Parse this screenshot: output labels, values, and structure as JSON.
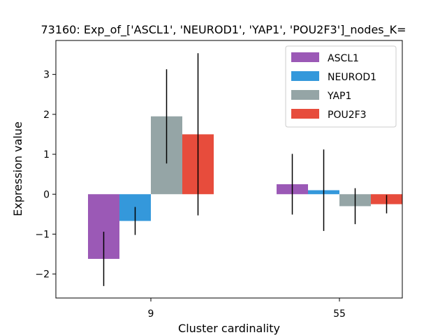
{
  "chart_data": {
    "type": "bar",
    "title": "73160: Exp_of_['ASCL1', 'NEUROD1', 'YAP1', 'POU2F3']_nodes_K=",
    "xlabel": "Cluster cardinality",
    "ylabel": "Expression value",
    "categories": [
      "9",
      "55"
    ],
    "ylim": [
      -2.6,
      3.85
    ],
    "yticks": [
      -2,
      -1,
      0,
      1,
      2,
      3
    ],
    "grid": false,
    "legend_position": "top-right",
    "series": [
      {
        "name": "ASCL1",
        "color": "#9b59b6",
        "values": [
          -1.62,
          0.25
        ],
        "errors": [
          0.68,
          0.76
        ]
      },
      {
        "name": "NEUROD1",
        "color": "#3498db",
        "values": [
          -0.67,
          0.1
        ],
        "errors": [
          0.35,
          1.02
        ]
      },
      {
        "name": "YAP1",
        "color": "#95a5a6",
        "values": [
          1.95,
          -0.3
        ],
        "errors": [
          1.18,
          0.45
        ]
      },
      {
        "name": "POU2F3",
        "color": "#e74c3c",
        "values": [
          1.5,
          -0.25
        ],
        "errors": [
          2.03,
          0.23
        ]
      }
    ]
  }
}
